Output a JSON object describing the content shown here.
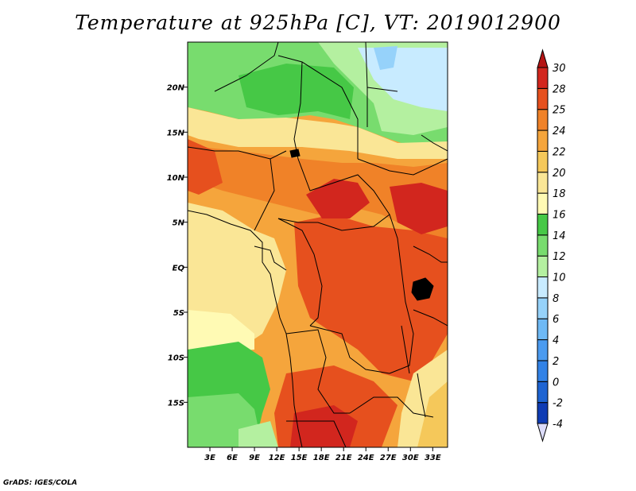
{
  "title": "Temperature at 925hPa [C], VT: 2019012900",
  "credit": "GrADS: IGES/COLA",
  "map": {
    "variable": "Temperature at 925hPa",
    "units": "C",
    "valid_time": "2019012900",
    "lon_range": [
      0,
      35
    ],
    "lat_range": [
      -20,
      25
    ],
    "x_ticks": [
      {
        "value": 3,
        "label": "3E"
      },
      {
        "value": 6,
        "label": "6E"
      },
      {
        "value": 9,
        "label": "9E"
      },
      {
        "value": 12,
        "label": "12E"
      },
      {
        "value": 15,
        "label": "15E"
      },
      {
        "value": 18,
        "label": "18E"
      },
      {
        "value": 21,
        "label": "21E"
      },
      {
        "value": 24,
        "label": "24E"
      },
      {
        "value": 27,
        "label": "27E"
      },
      {
        "value": 30,
        "label": "30E"
      },
      {
        "value": 33,
        "label": "33E"
      }
    ],
    "y_ticks": [
      {
        "value": 20,
        "label": "20N"
      },
      {
        "value": 15,
        "label": "15N"
      },
      {
        "value": 10,
        "label": "10N"
      },
      {
        "value": 5,
        "label": "5N"
      },
      {
        "value": 0,
        "label": "EQ"
      },
      {
        "value": -5,
        "label": "5S"
      },
      {
        "value": -10,
        "label": "10S"
      },
      {
        "value": -15,
        "label": "15S"
      }
    ]
  },
  "colorbar": {
    "levels": [
      "-4",
      "-2",
      "0",
      "2",
      "4",
      "6",
      "8",
      "10",
      "12",
      "14",
      "16",
      "18",
      "20",
      "22",
      "24",
      "25",
      "28",
      "30"
    ],
    "colors": [
      "#0a0a78",
      "#0f3cb4",
      "#1e64d2",
      "#3282e6",
      "#4b9bf0",
      "#6eb9f5",
      "#96d2fa",
      "#c8ebff",
      "#b4f0a0",
      "#78dc6e",
      "#46c846",
      "#fffab4",
      "#fae696",
      "#f5c85a",
      "#f5a53c",
      "#f08228",
      "#e6501e",
      "#d2261e",
      "#b41414"
    ]
  }
}
